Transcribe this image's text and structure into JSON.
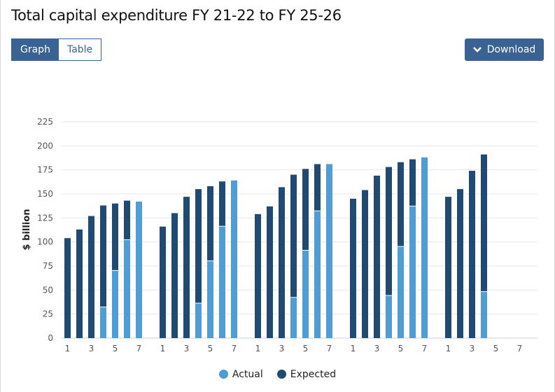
{
  "title": "Total capital expenditure FY 21-22 to FY 25-26",
  "view_toggle": {
    "graph": "Graph",
    "table": "Table",
    "selected": "Graph"
  },
  "download_label": "Download",
  "colors": {
    "actual": "#4f9dd3",
    "expected": "#214a72",
    "button": "#3a6394"
  },
  "chart_data": {
    "type": "bar",
    "stacked": true,
    "title": "Total capital expenditure FY 21-22 to FY 25-26",
    "ylabel": "$ billion",
    "ylim": [
      0,
      225
    ],
    "yticks": [
      0,
      25,
      50,
      75,
      100,
      125,
      150,
      175,
      200,
      225
    ],
    "xticks": [
      "1",
      "3",
      "5",
      "7"
    ],
    "grid": true,
    "legend_position": "bottom",
    "legend": [
      "Actual",
      "Expected"
    ],
    "groups": [
      {
        "slots": [
          1,
          2,
          3,
          4,
          5,
          6,
          7
        ],
        "actual": [
          null,
          null,
          null,
          32,
          70,
          102,
          142
        ],
        "total": [
          104,
          113,
          127,
          138,
          140,
          143,
          142
        ]
      },
      {
        "slots": [
          1,
          2,
          3,
          4,
          5,
          6,
          7
        ],
        "actual": [
          null,
          null,
          null,
          36,
          80,
          116,
          164
        ],
        "total": [
          116,
          130,
          147,
          155,
          158,
          163,
          164
        ]
      },
      {
        "slots": [
          1,
          2,
          3,
          4,
          5,
          6,
          7
        ],
        "actual": [
          null,
          null,
          null,
          42,
          91,
          132,
          181
        ],
        "total": [
          129,
          137,
          157,
          170,
          176,
          181,
          181
        ]
      },
      {
        "slots": [
          1,
          2,
          3,
          4,
          5,
          6,
          7
        ],
        "actual": [
          null,
          null,
          null,
          44,
          95,
          137,
          188
        ],
        "total": [
          145,
          154,
          169,
          178,
          183,
          186,
          188
        ]
      },
      {
        "slots": [
          1,
          2,
          3,
          4,
          5,
          6,
          7
        ],
        "actual": [
          null,
          null,
          null,
          48,
          null,
          null,
          null
        ],
        "total": [
          147,
          155,
          174,
          191,
          null,
          null,
          null
        ]
      }
    ]
  }
}
